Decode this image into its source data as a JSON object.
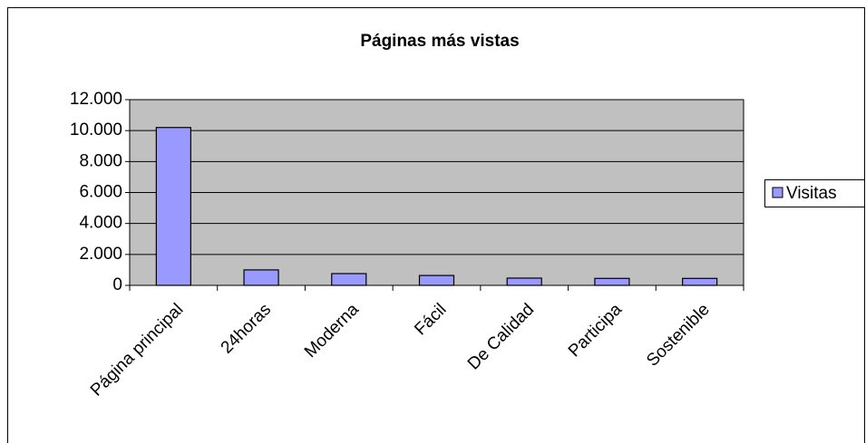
{
  "chart_data": {
    "type": "bar",
    "title": "Páginas más vistas",
    "categories": [
      "Página principal",
      "24horas",
      "Moderna",
      "Fácil",
      "De Calidad",
      "Participa",
      "Sostenible"
    ],
    "series": [
      {
        "name": "Visitas",
        "color": "#9999ff",
        "values": [
          10200,
          1000,
          760,
          640,
          470,
          450,
          450
        ]
      }
    ],
    "ylim": [
      0,
      12000
    ],
    "yticks": [
      {
        "value": 0,
        "label": "0"
      },
      {
        "value": 2000,
        "label": "2.000"
      },
      {
        "value": 4000,
        "label": "4.000"
      },
      {
        "value": 6000,
        "label": "6.000"
      },
      {
        "value": 8000,
        "label": "8.000"
      },
      {
        "value": 10000,
        "label": "10.000"
      },
      {
        "value": 12000,
        "label": "12.000"
      }
    ],
    "grid": true,
    "legend": "right",
    "plot_background": "#c0c0c0"
  }
}
